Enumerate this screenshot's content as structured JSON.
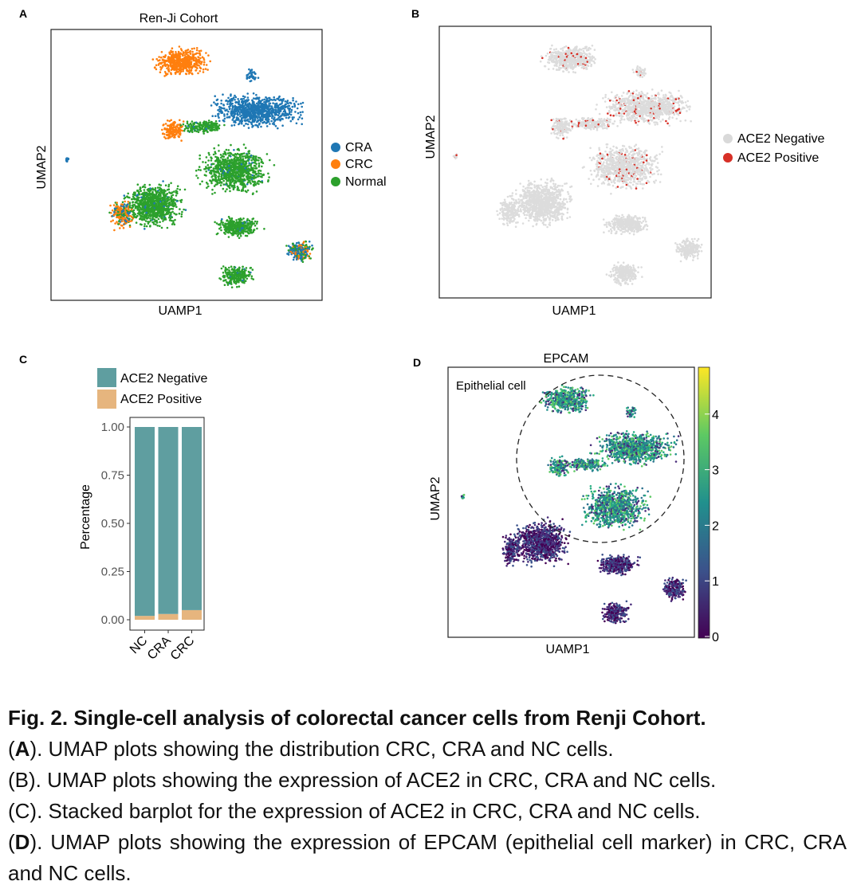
{
  "panels": {
    "A": {
      "label": "A",
      "title": "Ren-Ji Cohort",
      "xlabel": "UAMP1",
      "ylabel": "UMAP2",
      "legend": [
        {
          "name": "CRA",
          "color": "#1f77b4"
        },
        {
          "name": "CRC",
          "color": "#ff7f0e"
        },
        {
          "name": "Normal",
          "color": "#2ca02c"
        }
      ]
    },
    "B": {
      "label": "B",
      "xlabel": "UAMP1",
      "ylabel": "UMAP2",
      "legend": [
        {
          "name": "ACE2 Negative",
          "color": "#d9d9d9"
        },
        {
          "name": "ACE2 Positive",
          "color": "#d73027"
        }
      ]
    },
    "C": {
      "label": "C"
    },
    "D": {
      "label": "D",
      "title": "EPCAM",
      "xlabel": "UAMP1",
      "ylabel": "UMAP2",
      "annotation": "Epithelial cell",
      "colorbar_ticks": [
        "0",
        "1",
        "2",
        "3",
        "4"
      ]
    }
  },
  "chart_data": [
    {
      "type": "bar",
      "subtype": "stacked",
      "panel": "C",
      "categories": [
        "NC",
        "CRA",
        "CRC"
      ],
      "series": [
        {
          "name": "ACE2 Negative",
          "color": "#5f9ea0",
          "values": [
            0.98,
            0.97,
            0.95
          ]
        },
        {
          "name": "ACE2 Positive",
          "color": "#e6b57e",
          "values": [
            0.02,
            0.03,
            0.05
          ]
        }
      ],
      "ylabel": "Percentage",
      "xlabel": "",
      "ylim": [
        0,
        1.0
      ],
      "yticks": [
        "0.00",
        "0.25",
        "0.50",
        "0.75",
        "1.00"
      ],
      "legend": "top"
    }
  ],
  "caption": {
    "title": "Fig. 2. Single-cell analysis of colorectal cancer cells from Renji Cohort.",
    "a_label": "A",
    "a_text": "). UMAP plots showing the distribution CRC, CRA and NC cells.",
    "b_text": "(B). UMAP plots showing the expression of ACE2 in CRC, CRA and NC cells.",
    "c_text": "(C). Stacked barplot for the expression of ACE2 in CRC, CRA and NC cells.",
    "d_label": "D",
    "d_text": "). UMAP plots showing the expression of EPCAM (epithelial cell marker) in CRC, CRA and NC cells."
  }
}
